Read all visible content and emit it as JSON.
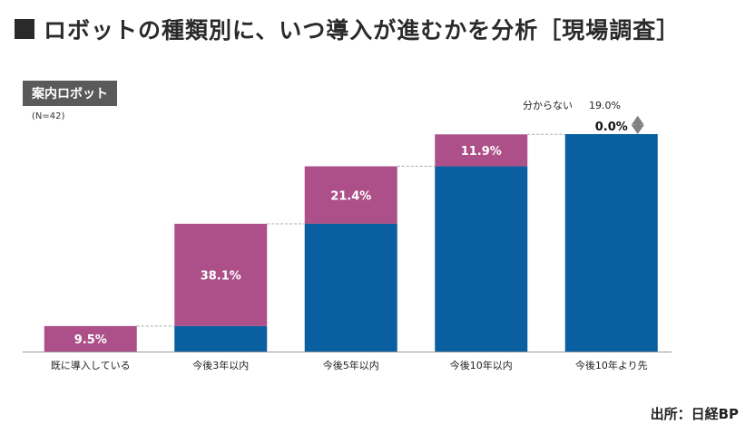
{
  "title": "ロボットの種類別に、いつ導入が進むかを分析［現場調査］",
  "subset_label": "案内ロボット",
  "sample_size": "(N=42)",
  "unknown": {
    "label": "分からない",
    "value_text": "19.0%"
  },
  "source": "出所：日経BP",
  "colors": {
    "adopted": "#0a5fa0",
    "increment": "#ad5089",
    "title_square": "#2a2a2a",
    "badge": "#5a5a5a",
    "arrow": "#808080"
  },
  "chart_data": {
    "type": "bar",
    "stacked": true,
    "categories": [
      "既に導入している",
      "今後3年以内",
      "今後5年以内",
      "今後10年以内",
      "今後10年より先"
    ],
    "series": [
      {
        "values": [
          0,
          9.5,
          47.6,
          69.0,
          81.0
        ]
      },
      {
        "values": [
          9.5,
          38.1,
          21.4,
          11.9,
          0.0
        ]
      }
    ],
    "data_labels": [
      "9.5%",
      "38.1%",
      "21.4%",
      "11.9%",
      "0.0%"
    ],
    "cumulative_max": 81.0,
    "unknown_value": 19.0
  }
}
